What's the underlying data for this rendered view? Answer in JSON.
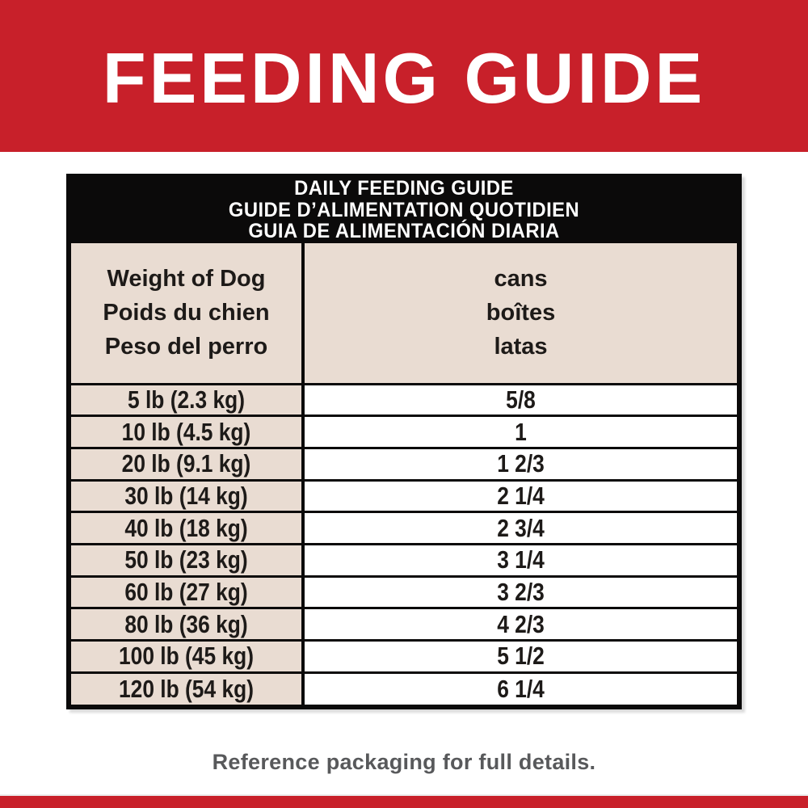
{
  "banner": {
    "title": "FEEDING GUIDE"
  },
  "table": {
    "title_lines": [
      "DAILY FEEDING GUIDE",
      "GUIDE D’ALIMENTATION QUOTIDIEN",
      "GUIA DE ALIMENTACIÓN DIARIA"
    ],
    "columns": [
      {
        "header_lines": [
          "Weight of Dog",
          "Poids du chien",
          "Peso del perro"
        ]
      },
      {
        "header_lines": [
          "cans",
          "boîtes",
          "latas"
        ]
      }
    ],
    "rows": [
      {
        "weight": "5 lb (2.3 kg)",
        "cans": "5/8"
      },
      {
        "weight": "10 lb (4.5 kg)",
        "cans": "1"
      },
      {
        "weight": "20 lb (9.1 kg)",
        "cans": "1 2/3"
      },
      {
        "weight": "30 lb (14 kg)",
        "cans": "2 1/4"
      },
      {
        "weight": "40 lb (18 kg)",
        "cans": "2 3/4"
      },
      {
        "weight": "50 lb (23 kg)",
        "cans": "3 1/4"
      },
      {
        "weight": "60 lb (27 kg)",
        "cans": "3 2/3"
      },
      {
        "weight": "80 lb (36 kg)",
        "cans": "4 2/3"
      },
      {
        "weight": "100 lb (45 kg)",
        "cans": "5 1/2"
      },
      {
        "weight": "120 lb (54 kg)",
        "cans": "6 1/4"
      }
    ]
  },
  "footer": {
    "note": "Reference packaging for full details."
  },
  "colors": {
    "brand_red": "#C8202A",
    "beige": "#E9DCD2",
    "black": "#0B0A0A",
    "text_dark": "#1D1A18",
    "footer_gray": "#58595B"
  }
}
